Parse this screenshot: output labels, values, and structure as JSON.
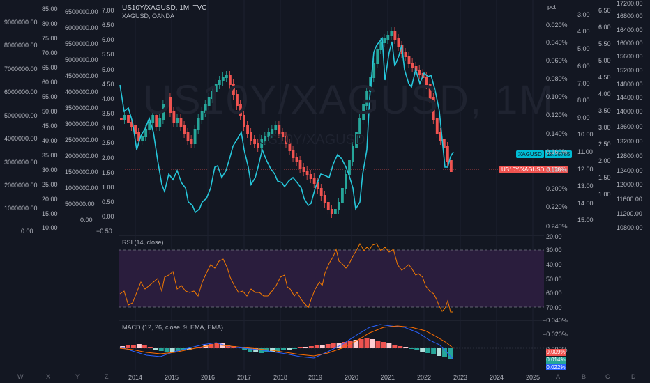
{
  "header": {
    "title": "US10Y/XAGUSD, 1M, TVC",
    "subtitle": "XAGUSD, OANDA"
  },
  "watermark": {
    "main": "US10Y/XAGUSD, 1M",
    "secondary": "US10Y/XAGUSD"
  },
  "axes": {
    "col1": [
      "9000000.00",
      "8000000.00",
      "7000000.00",
      "6000000.00",
      "5000000.00",
      "4000000.00",
      "3000000.00",
      "2000000.00",
      "1000000.00",
      "0.00"
    ],
    "col2": [
      "85.00",
      "80.00",
      "75.00",
      "70.00",
      "65.00",
      "60.00",
      "55.00",
      "50.00",
      "45.00",
      "40.00",
      "35.00",
      "30.00",
      "25.00",
      "20.00",
      "15.00",
      "10.00"
    ],
    "col3": [
      "6500000.00",
      "6000000.00",
      "5500000.00",
      "5000000.00",
      "4500000.00",
      "4000000.00",
      "3500000.00",
      "3000000.00",
      "2500000.00",
      "2000000.00",
      "1500000.00",
      "1000000.00",
      "500000.00",
      "0.00"
    ],
    "col4": [
      "7.00",
      "6.50",
      "6.00",
      "5.50",
      "5.00",
      "4.50",
      "4.00",
      "3.50",
      "3.00",
      "2.50",
      "2.00",
      "1.50",
      "1.00",
      "0.50",
      "0.00",
      "−0.50"
    ],
    "pct_label": "pct",
    "pct": [
      "0.020%",
      "0.040%",
      "0.060%",
      "0.080%",
      "0.100%",
      "0.120%",
      "0.140%",
      "0.160%",
      "0.180%",
      "0.200%",
      "0.220%",
      "0.240%"
    ],
    "right1": [
      "3.00",
      "4.00",
      "5.00",
      "6.00",
      "7.00",
      "8.00",
      "9.00",
      "10.00",
      "11.00",
      "12.00",
      "13.00",
      "14.00",
      "15.00"
    ],
    "right2": [
      "6.50",
      "6.00",
      "5.50",
      "5.00",
      "4.50",
      "4.00",
      "3.50",
      "3.00",
      "2.50",
      "2.00",
      "1.50",
      "1.00"
    ],
    "right3": [
      "17200.00",
      "16800.00",
      "16400.00",
      "16000.00",
      "15600.00",
      "15200.00",
      "14800.00",
      "14400.00",
      "14000.00",
      "13600.00",
      "13200.00",
      "12800.00",
      "12400.00",
      "12000.00",
      "11600.00",
      "11200.00",
      "10800.00"
    ],
    "rsi": [
      "20.00",
      "30.00",
      "40.00",
      "50.00",
      "60.00",
      "70.00"
    ],
    "macd": [
      "−0.040%",
      "−0.020%",
      "0.000%"
    ]
  },
  "price_tags": {
    "xag_label": "XAGUSD",
    "xag_value": "18.38785",
    "us10y_label": "US10Y/XAGUSD",
    "us10y_value": "0.178%"
  },
  "rsi": {
    "label": "RSI (14, close)"
  },
  "macd": {
    "label": "MACD (12, 26, close, 9, EMA, EMA)",
    "tags": [
      "0.009%",
      "0.014%",
      "0.022%"
    ]
  },
  "time_axis": [
    "2014",
    "2015",
    "2016",
    "2017",
    "2018",
    "2019",
    "2020",
    "2021",
    "2022",
    "2023",
    "2024",
    "2025"
  ],
  "hotkeys": [
    "W",
    "X",
    "Y",
    "Z",
    "A",
    "B",
    "C",
    "D"
  ],
  "colors": {
    "up": "#26a69a",
    "down": "#ef5350",
    "line": "#00bcd4",
    "rsi": "#f57c00",
    "macd": "#2962ff",
    "signal": "#ff6d00",
    "rsi_band": "#2a1d3d"
  }
}
